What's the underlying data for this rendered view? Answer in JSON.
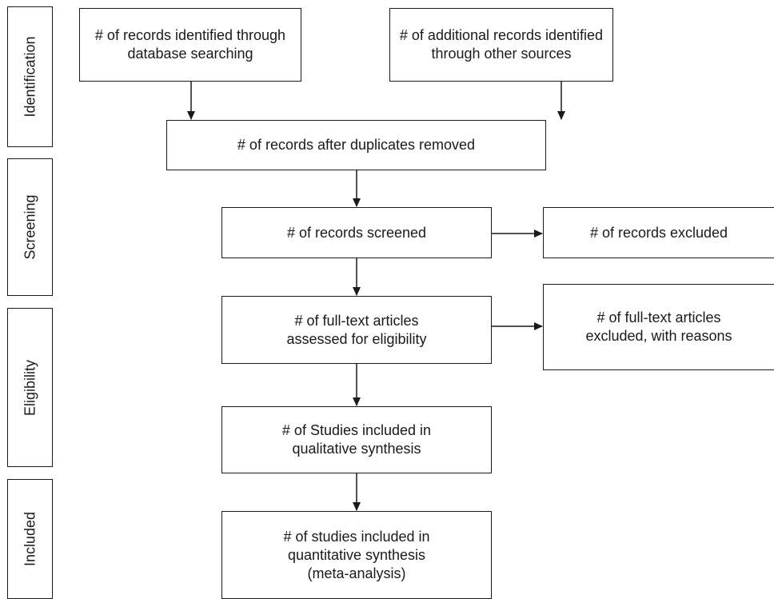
{
  "phases": {
    "identification": "Identification",
    "screening": "Screening",
    "eligibility": "Eligibility",
    "included": "Included"
  },
  "boxes": {
    "db_search": "# of records identified through\ndatabase searching",
    "other_sources": "# of additional records identified\nthrough other sources",
    "duplicates_removed": "# of records after duplicates removed",
    "screened": "# of records screened",
    "excluded": "# of records excluded",
    "fulltext_assessed": "# of full-text articles\nassessed for eligibility",
    "fulltext_excluded": "# of full-text articles\nexcluded, with reasons",
    "qualitative": "# of Studies included in\nqualitative synthesis",
    "quantitative": "# of studies included in\nquantitative synthesis\n(meta-analysis)"
  },
  "colors": {
    "stroke": "#1a1a1a",
    "background": "#ffffff"
  }
}
